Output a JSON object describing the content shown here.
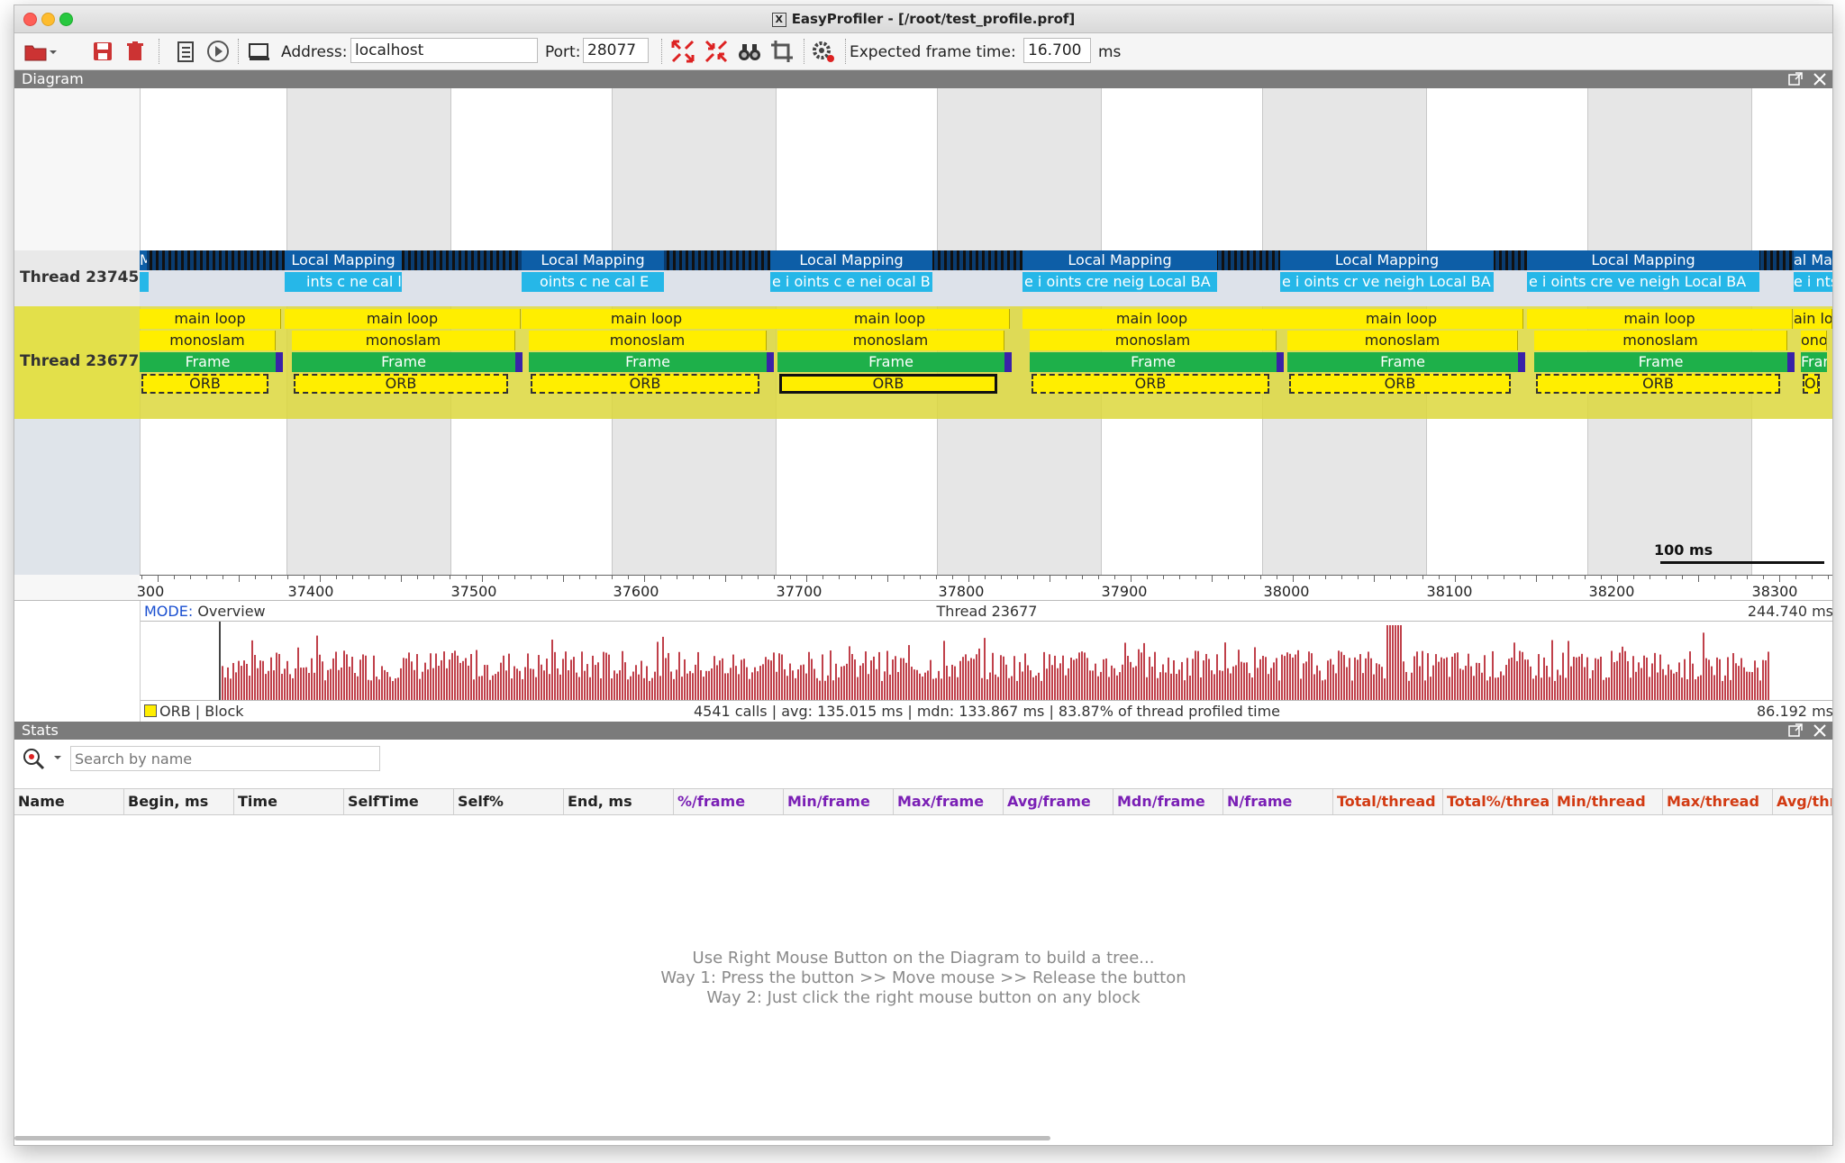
{
  "window": {
    "title": "EasyProfiler - [/root/test_profile.prof]",
    "x_logo": "X"
  },
  "toolbar": {
    "icons": [
      "open-folder-icon",
      "dropdown-arrow-icon",
      "save-icon",
      "delete-icon",
      "list-icon",
      "play-icon",
      "connect-icon",
      "expand-all-icon",
      "collapse-all-icon",
      "binoculars-icon",
      "crop-icon",
      "settings-icon"
    ],
    "address_label": "Address:",
    "address_value": "localhost",
    "port_label": "Port:",
    "port_value": "28077",
    "frame_time_label": "Expected frame time:",
    "frame_time_value": "16.700",
    "frame_time_unit": "ms"
  },
  "diagram": {
    "panel_title": "Diagram",
    "thread_1": "Thread 23745",
    "thread_2": "Thread 23677",
    "local_mapping_label": "Local Mapping",
    "lm_fragments": [
      "ints c ne cal l",
      "oints c ne cal E",
      "e i oints c e nei ocal B",
      "e i oints cre neig Local BA",
      "e i oints cr ve neigh Local BA",
      "e i oints cre ve neigh Local BA"
    ],
    "main_loop_label": "main loop",
    "monoslam_label": "monoslam",
    "frame_label": "Frame",
    "orb_label": "ORB",
    "edge_labels": {
      "lm_left": "M",
      "lm_right": "al Map",
      "sub_right": "e i nts",
      "ml_right": "ain loo",
      "mono_right": "onosl",
      "frame_right": "Fram",
      "orb_right": "ORB"
    },
    "scale_label": "100 ms",
    "ticks": [
      "300",
      "37400",
      "37500",
      "37600",
      "37700",
      "37800",
      "37900",
      "38000",
      "38100",
      "38200",
      "38300"
    ]
  },
  "overview": {
    "mode_label": "MODE:",
    "mode_value": "Overview",
    "thread": "Thread 23677",
    "max_value": "244.740 ms",
    "legend_name": "ORB | Block",
    "summary": "4541 calls | avg: 135.015 ms | mdn: 133.867 ms | 83.87% of thread profiled time",
    "min_value": "86.192 ms",
    "legend_color": "#ffee00",
    "bar_color": "#c0404a"
  },
  "stats": {
    "panel_title": "Stats",
    "search_placeholder": "Search by name",
    "columns": [
      {
        "label": "Name",
        "color": "#222222"
      },
      {
        "label": "Begin, ms",
        "color": "#222222"
      },
      {
        "label": "Time",
        "color": "#222222"
      },
      {
        "label": "SelfTime",
        "color": "#222222"
      },
      {
        "label": "Self%",
        "color": "#222222"
      },
      {
        "label": "End, ms",
        "color": "#222222"
      },
      {
        "label": "%/frame",
        "color": "#7a1fb5"
      },
      {
        "label": "Min/frame",
        "color": "#7a1fb5"
      },
      {
        "label": "Max/frame",
        "color": "#7a1fb5"
      },
      {
        "label": "Avg/frame",
        "color": "#7a1fb5"
      },
      {
        "label": "Mdn/frame",
        "color": "#7a1fb5"
      },
      {
        "label": "N/frame",
        "color": "#7a1fb5"
      },
      {
        "label": "Total/thread",
        "color": "#d23a12"
      },
      {
        "label": "Total%/threa",
        "color": "#d23a12"
      },
      {
        "label": "Min/thread",
        "color": "#d23a12"
      },
      {
        "label": "Max/thread",
        "color": "#d23a12"
      },
      {
        "label": "Avg/thr",
        "color": "#d23a12"
      }
    ],
    "hint_1": "Use Right Mouse Button on the Diagram to build a tree...",
    "hint_2": "Way 1: Press the button >> Move mouse >> Release the button",
    "hint_3": "Way 2: Just click the right mouse button on any block"
  }
}
